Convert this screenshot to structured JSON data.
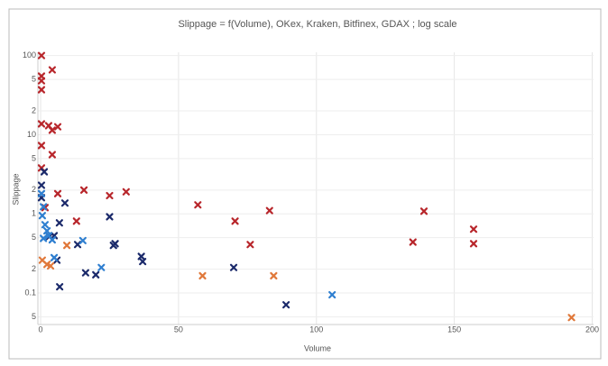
{
  "chart_data": {
    "type": "scatter",
    "title": "Slippage = f(Volume), OKex, Kraken, Bitfinex, GDAX ; log scale",
    "x_label": "Volume",
    "y_label": "Slippage",
    "log_y": true,
    "grid": true,
    "xlim": [
      -1,
      200.5
    ],
    "xticks": [
      0,
      50,
      100,
      150,
      200
    ],
    "ylim": [
      0.04,
      110
    ],
    "yticks": [
      100,
      {
        "value": 50,
        "label": "5"
      },
      {
        "value": 20,
        "label": "2"
      },
      10,
      5,
      2,
      1,
      {
        "value": 0.5,
        "label": "5"
      },
      {
        "value": 0.2,
        "label": "2"
      },
      0.1,
      {
        "value": 0.05,
        "label": "5"
      }
    ],
    "series": [
      {
        "color": "#b8262b",
        "x": [
          0.3,
          4.2,
          0.3,
          0.3,
          0.3,
          0.3,
          2.9,
          4.2,
          6.2,
          0.3,
          4.2,
          0.3,
          6.2,
          15.7,
          25,
          31,
          57,
          70.5,
          83,
          76,
          13,
          139,
          135,
          157,
          157,
          1.6
        ],
        "values": [
          100,
          66,
          55,
          48,
          37,
          13.7,
          13,
          11.4,
          12.6,
          7.3,
          5.6,
          3.8,
          1.8,
          2.0,
          1.7,
          1.9,
          1.3,
          0.81,
          1.1,
          0.41,
          0.81,
          1.08,
          0.44,
          0.64,
          0.42,
          1.2
        ]
      },
      {
        "color": "#1b2a6b",
        "x": [
          1.3,
          0.3,
          0.3,
          8.8,
          6.8,
          4.9,
          13.4,
          25,
          26.4,
          27,
          36.5,
          37,
          70,
          16.3,
          20,
          6.9,
          89,
          5.9,
          3.2
        ],
        "values": [
          3.4,
          2.3,
          1.6,
          1.37,
          0.77,
          0.53,
          0.41,
          0.92,
          0.4,
          0.42,
          0.29,
          0.25,
          0.21,
          0.18,
          0.17,
          0.12,
          0.071,
          0.26,
          0.52
        ]
      },
      {
        "color": "#2f7fd0",
        "x": [
          0.3,
          1,
          0.6,
          1.6,
          2.3,
          2.9,
          4.2,
          15.3,
          22,
          105.7,
          1,
          4.9
        ],
        "values": [
          1.8,
          1.23,
          0.95,
          0.73,
          0.61,
          0.53,
          0.47,
          0.46,
          0.21,
          0.095,
          0.49,
          0.28
        ]
      },
      {
        "color": "#e0783a",
        "x": [
          0.6,
          2.3,
          3.6,
          9.5,
          58.7,
          84.5,
          192.5
        ],
        "values": [
          0.26,
          0.23,
          0.22,
          0.4,
          0.165,
          0.165,
          0.049
        ]
      }
    ]
  }
}
